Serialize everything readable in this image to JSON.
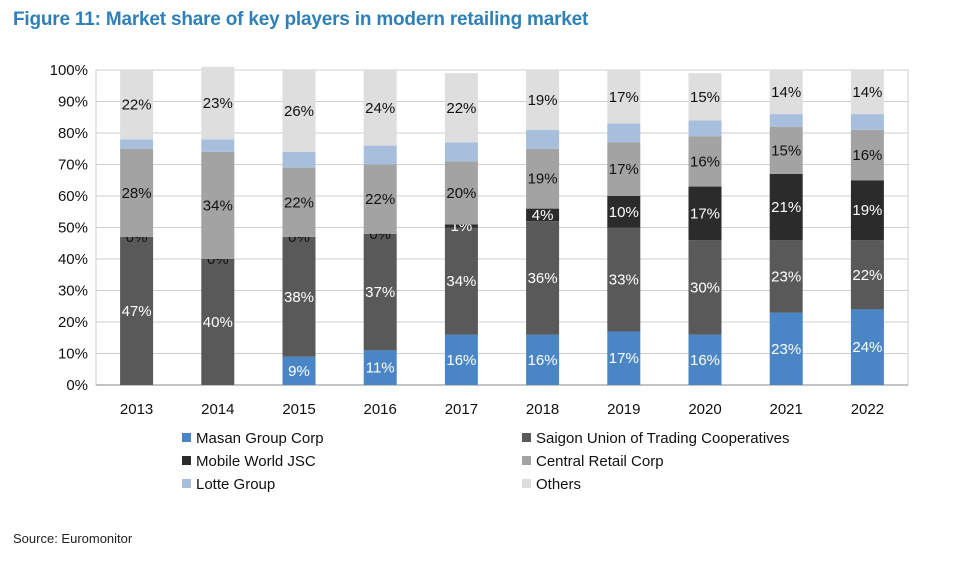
{
  "title": "Figure 11: Market share of key players in modern retailing market",
  "source": "Source: Euromonitor",
  "chart_data": {
    "type": "bar",
    "stacked": true,
    "title": "Figure 11: Market share of key players in modern retailing market",
    "xlabel": "",
    "ylabel": "",
    "ylim": [
      0,
      100
    ],
    "y_ticks": [
      "0%",
      "10%",
      "20%",
      "30%",
      "40%",
      "50%",
      "60%",
      "70%",
      "80%",
      "90%",
      "100%"
    ],
    "categories": [
      "2013",
      "2014",
      "2015",
      "2016",
      "2017",
      "2018",
      "2019",
      "2020",
      "2021",
      "2022"
    ],
    "legend_position": "bottom",
    "series": [
      {
        "name": "Masan Group Corp",
        "color": "#4a86c5",
        "values": [
          0,
          0,
          9,
          11,
          16,
          16,
          17,
          16,
          23,
          24
        ],
        "labels": [
          "",
          "",
          "9%",
          "11%",
          "16%",
          "16%",
          "17%",
          "16%",
          "23%",
          "24%"
        ]
      },
      {
        "name": "Saigon Union of Trading Cooperatives",
        "color": "#595959",
        "values": [
          47,
          40,
          38,
          37,
          34,
          36,
          33,
          30,
          23,
          22
        ],
        "labels": [
          "47%",
          "40%",
          "38%",
          "37%",
          "34%",
          "36%",
          "33%",
          "30%",
          "23%",
          "22%"
        ]
      },
      {
        "name": "Mobile World JSC",
        "color": "#2b2b2b",
        "values": [
          0,
          0,
          0,
          0,
          1,
          4,
          10,
          17,
          21,
          19
        ],
        "labels": [
          "0%",
          "0%",
          "0%",
          "0%",
          "1%",
          "4%",
          "10%",
          "17%",
          "21%",
          "19%"
        ]
      },
      {
        "name": "Central Retail Corp",
        "color": "#a3a3a3",
        "values": [
          28,
          34,
          22,
          22,
          20,
          19,
          17,
          16,
          15,
          16
        ],
        "labels": [
          "28%",
          "34%",
          "22%",
          "22%",
          "20%",
          "19%",
          "17%",
          "16%",
          "15%",
          "16%"
        ]
      },
      {
        "name": "Lotte Group",
        "color": "#a7bedc",
        "values": [
          3,
          4,
          5,
          6,
          6,
          6,
          6,
          5,
          4,
          5
        ],
        "labels": [
          "",
          "",
          "",
          "",
          "",
          "",
          "",
          "",
          "",
          ""
        ]
      },
      {
        "name": "Others",
        "color": "#dedede",
        "values": [
          22,
          23,
          26,
          24,
          22,
          19,
          17,
          15,
          14,
          14
        ],
        "labels": [
          "22%",
          "23%",
          "26%",
          "24%",
          "22%",
          "19%",
          "17%",
          "15%",
          "14%",
          "14%"
        ]
      }
    ]
  }
}
